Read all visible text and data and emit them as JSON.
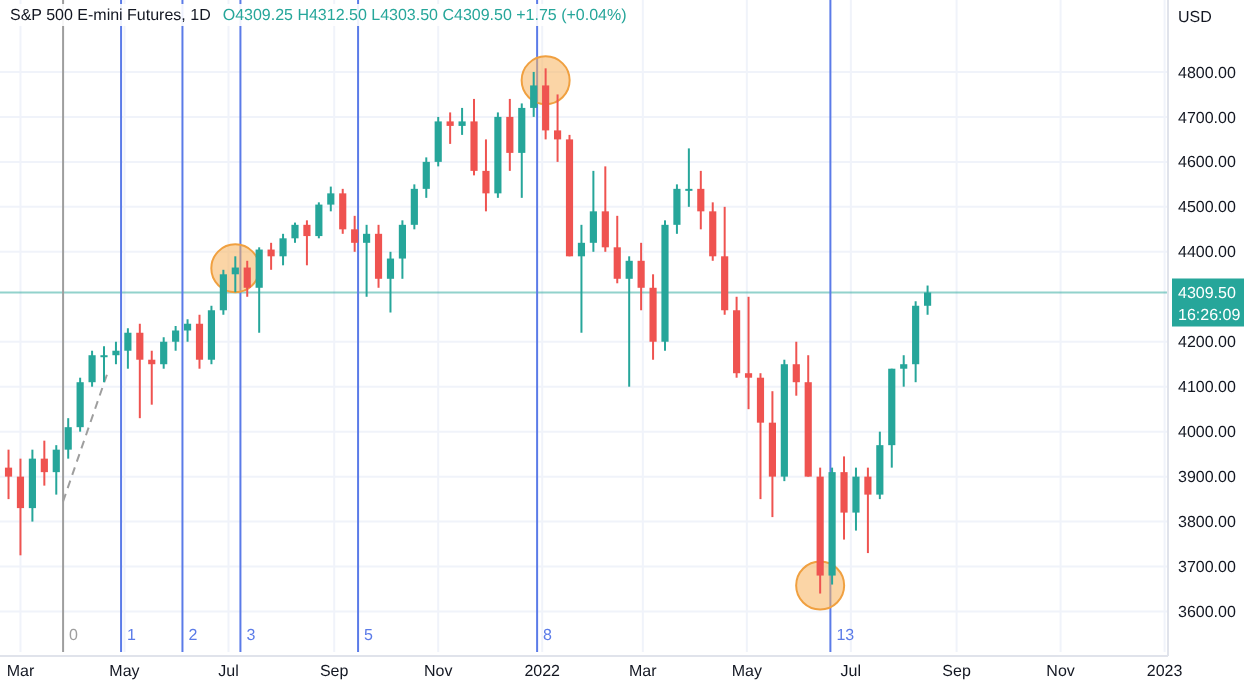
{
  "chart_data": {
    "type": "candlestick",
    "title": "S&P 500 E-mini Futures, 1D",
    "subtitle": "O4309.25 H4312.50 L4303.50 C4309.50 +1.75 (+0.04%)",
    "ylabel": "USD",
    "x": [
      "2021-02-22",
      "2021-03-01",
      "2021-03-08",
      "2021-03-15",
      "2021-03-22",
      "2021-03-29",
      "2021-04-05",
      "2021-04-12",
      "2021-04-19",
      "2021-04-26",
      "2021-05-03",
      "2021-05-10",
      "2021-05-17",
      "2021-05-24",
      "2021-05-31",
      "2021-06-07",
      "2021-06-14",
      "2021-06-21",
      "2021-06-28",
      "2021-07-05",
      "2021-07-12",
      "2021-07-19",
      "2021-07-26",
      "2021-08-02",
      "2021-08-09",
      "2021-08-16",
      "2021-08-23",
      "2021-08-30",
      "2021-09-06",
      "2021-09-13",
      "2021-09-20",
      "2021-09-27",
      "2021-10-04",
      "2021-10-11",
      "2021-10-18",
      "2021-10-25",
      "2021-11-01",
      "2021-11-08",
      "2021-11-15",
      "2021-11-22",
      "2021-11-29",
      "2021-12-06",
      "2021-12-13",
      "2021-12-20",
      "2021-12-27",
      "2022-01-03",
      "2022-01-10",
      "2022-01-17",
      "2022-01-24",
      "2022-01-31",
      "2022-02-07",
      "2022-02-14",
      "2022-02-21",
      "2022-02-28",
      "2022-03-07",
      "2022-03-14",
      "2022-03-21",
      "2022-03-28",
      "2022-04-04",
      "2022-04-11",
      "2022-04-18",
      "2022-04-25",
      "2022-05-02",
      "2022-05-09",
      "2022-05-16",
      "2022-05-23",
      "2022-05-30",
      "2022-06-06",
      "2022-06-13",
      "2022-06-20",
      "2022-06-27",
      "2022-07-04",
      "2022-07-11",
      "2022-07-18",
      "2022-07-25",
      "2022-08-01",
      "2022-08-08",
      "2022-08-15"
    ],
    "ohlc": [
      [
        3920,
        3960,
        3850,
        3900
      ],
      [
        3900,
        3940,
        3725,
        3830
      ],
      [
        3830,
        3960,
        3800,
        3940
      ],
      [
        3940,
        3980,
        3880,
        3910
      ],
      [
        3910,
        3970,
        3860,
        3960
      ],
      [
        3960,
        4030,
        3940,
        4010
      ],
      [
        4010,
        4120,
        4000,
        4110
      ],
      [
        4110,
        4180,
        4100,
        4170
      ],
      [
        4170,
        4190,
        4110,
        4170
      ],
      [
        4170,
        4200,
        4150,
        4180
      ],
      [
        4180,
        4230,
        4140,
        4220
      ],
      [
        4220,
        4240,
        4030,
        4160
      ],
      [
        4160,
        4180,
        4060,
        4150
      ],
      [
        4150,
        4210,
        4140,
        4200
      ],
      [
        4200,
        4235,
        4180,
        4225
      ],
      [
        4225,
        4250,
        4200,
        4240
      ],
      [
        4240,
        4260,
        4140,
        4160
      ],
      [
        4160,
        4280,
        4150,
        4270
      ],
      [
        4270,
        4360,
        4260,
        4350
      ],
      [
        4350,
        4390,
        4310,
        4365
      ],
      [
        4365,
        4380,
        4300,
        4320
      ],
      [
        4320,
        4410,
        4220,
        4405
      ],
      [
        4405,
        4420,
        4360,
        4390
      ],
      [
        4390,
        4440,
        4370,
        4430
      ],
      [
        4430,
        4465,
        4420,
        4460
      ],
      [
        4460,
        4470,
        4370,
        4435
      ],
      [
        4435,
        4510,
        4430,
        4505
      ],
      [
        4505,
        4545,
        4490,
        4530
      ],
      [
        4530,
        4540,
        4440,
        4450
      ],
      [
        4450,
        4480,
        4400,
        4420
      ],
      [
        4420,
        4460,
        4300,
        4440
      ],
      [
        4440,
        4460,
        4320,
        4340
      ],
      [
        4340,
        4400,
        4265,
        4385
      ],
      [
        4385,
        4470,
        4340,
        4460
      ],
      [
        4460,
        4550,
        4450,
        4540
      ],
      [
        4540,
        4610,
        4520,
        4600
      ],
      [
        4600,
        4700,
        4590,
        4690
      ],
      [
        4690,
        4710,
        4640,
        4680
      ],
      [
        4680,
        4720,
        4660,
        4690
      ],
      [
        4690,
        4740,
        4570,
        4580
      ],
      [
        4580,
        4650,
        4490,
        4530
      ],
      [
        4530,
        4710,
        4520,
        4700
      ],
      [
        4700,
        4740,
        4580,
        4620
      ],
      [
        4620,
        4730,
        4520,
        4720
      ],
      [
        4720,
        4800,
        4700,
        4770
      ],
      [
        4770,
        4808,
        4650,
        4670
      ],
      [
        4670,
        4750,
        4600,
        4650
      ],
      [
        4650,
        4660,
        4390,
        4390
      ],
      [
        4390,
        4460,
        4220,
        4420
      ],
      [
        4420,
        4580,
        4400,
        4490
      ],
      [
        4490,
        4590,
        4400,
        4410
      ],
      [
        4410,
        4480,
        4330,
        4340
      ],
      [
        4340,
        4390,
        4100,
        4380
      ],
      [
        4380,
        4420,
        4270,
        4320
      ],
      [
        4320,
        4350,
        4160,
        4200
      ],
      [
        4200,
        4470,
        4180,
        4460
      ],
      [
        4460,
        4550,
        4440,
        4540
      ],
      [
        4540,
        4630,
        4500,
        4540
      ],
      [
        4540,
        4580,
        4450,
        4490
      ],
      [
        4490,
        4510,
        4380,
        4390
      ],
      [
        4390,
        4500,
        4260,
        4270
      ],
      [
        4270,
        4300,
        4120,
        4130
      ],
      [
        4130,
        4300,
        4050,
        4120
      ],
      [
        4120,
        4130,
        3850,
        4020
      ],
      [
        4020,
        4090,
        3810,
        3900
      ],
      [
        3900,
        4160,
        3890,
        4150
      ],
      [
        4150,
        4200,
        4080,
        4110
      ],
      [
        4110,
        4170,
        3900,
        3900
      ],
      [
        3900,
        3920,
        3640,
        3680
      ],
      [
        3680,
        3920,
        3660,
        3910
      ],
      [
        3910,
        3945,
        3760,
        3820
      ],
      [
        3820,
        3920,
        3780,
        3900
      ],
      [
        3900,
        3920,
        3730,
        3860
      ],
      [
        3860,
        4000,
        3850,
        3970
      ],
      [
        3970,
        4140,
        3920,
        4140
      ],
      [
        4140,
        4170,
        4100,
        4150
      ],
      [
        4150,
        4290,
        4110,
        4280
      ],
      [
        4280,
        4325,
        4260,
        4309.5
      ]
    ],
    "series": [
      {
        "type": "line",
        "color": "#9e9e9e",
        "line_style": "dashed",
        "x": [
          "2021-03-26",
          "2021-04-21"
        ],
        "values": [
          3845,
          4130
        ]
      }
    ],
    "xlim": [
      "2021-02-17",
      "2023-01-03"
    ],
    "xticks": [
      {
        "value": "2021-03-01",
        "label": "Mar"
      },
      {
        "value": "2021-05-01",
        "label": "May"
      },
      {
        "value": "2021-07-01",
        "label": "Jul"
      },
      {
        "value": "2021-09-01",
        "label": "Sep"
      },
      {
        "value": "2021-11-01",
        "label": "Nov"
      },
      {
        "value": "2022-01-01",
        "label": "2022"
      },
      {
        "value": "2022-03-01",
        "label": "Mar"
      },
      {
        "value": "2022-05-01",
        "label": "May"
      },
      {
        "value": "2022-07-01",
        "label": "Jul"
      },
      {
        "value": "2022-09-01",
        "label": "Sep"
      },
      {
        "value": "2022-11-01",
        "label": "Nov"
      },
      {
        "value": "2023-01-01",
        "label": "2023"
      }
    ],
    "ylim": [
      3510,
      4960
    ],
    "yticks": [
      {
        "value": 3600,
        "label": "3600.00"
      },
      {
        "value": 3700,
        "label": "3700.00"
      },
      {
        "value": 3800,
        "label": "3800.00"
      },
      {
        "value": 3900,
        "label": "3900.00"
      },
      {
        "value": 4000,
        "label": "4000.00"
      },
      {
        "value": 4100,
        "label": "4100.00"
      },
      {
        "value": 4200,
        "label": "4200.00"
      },
      {
        "value": 4400,
        "label": "4400.00"
      },
      {
        "value": 4500,
        "label": "4500.00"
      },
      {
        "value": 4600,
        "label": "4600.00"
      },
      {
        "value": 4700,
        "label": "4700.00"
      },
      {
        "value": 4800,
        "label": "4800.00"
      }
    ],
    "grid": true,
    "ref_lines": [
      {
        "axis": "x",
        "value": "2021-03-26",
        "label": "0",
        "color": "#9e9e9e"
      },
      {
        "axis": "x",
        "value": "2021-04-29",
        "label": "1",
        "color": "#5b7be8"
      },
      {
        "axis": "x",
        "value": "2021-06-04",
        "label": "2",
        "color": "#5b7be8"
      },
      {
        "axis": "x",
        "value": "2021-07-08",
        "label": "3",
        "color": "#5b7be8"
      },
      {
        "axis": "x",
        "value": "2021-09-15",
        "label": "5",
        "color": "#5b7be8"
      },
      {
        "axis": "x",
        "value": "2021-12-29",
        "label": "8",
        "color": "#5b7be8"
      },
      {
        "axis": "x",
        "value": "2022-06-19",
        "label": "13",
        "color": "#5b7be8"
      },
      {
        "axis": "y",
        "value": 4309.5,
        "label": "4309.50",
        "color": "#26a69a"
      }
    ],
    "annotations": [
      "16:26:09"
    ]
  }
}
